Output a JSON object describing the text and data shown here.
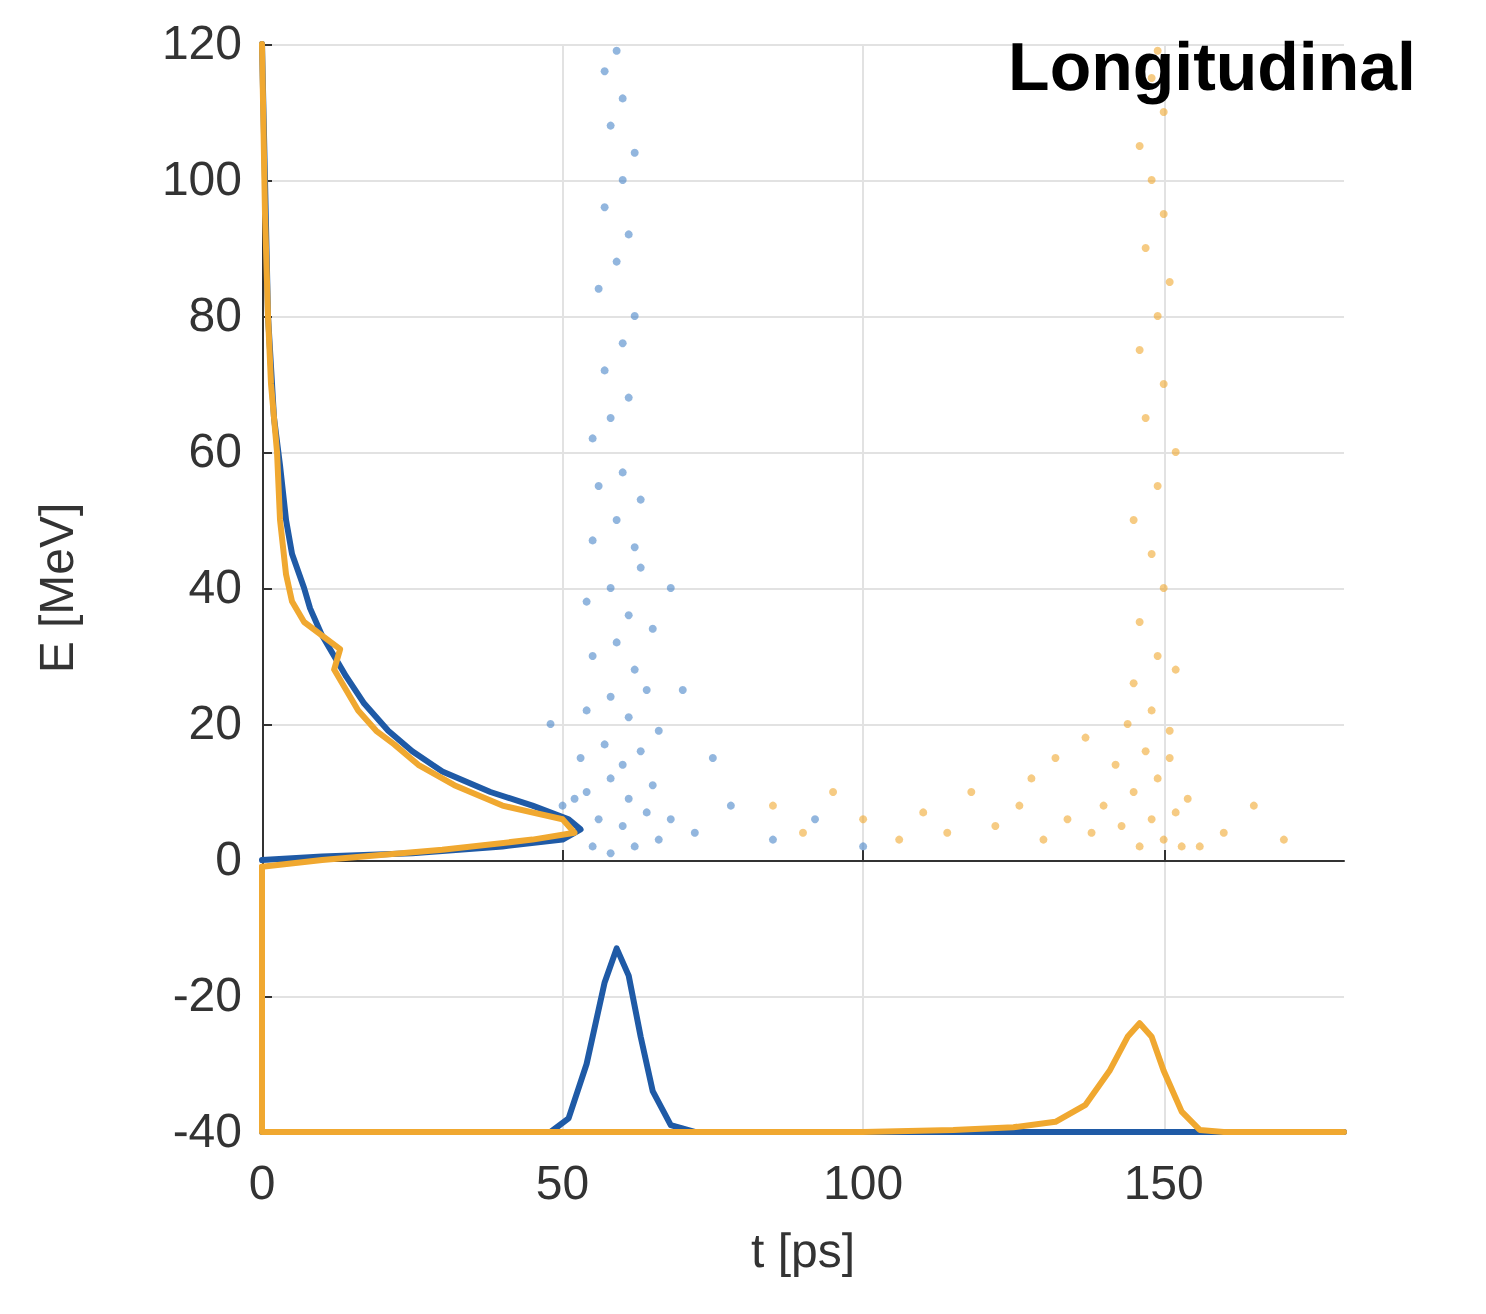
{
  "chart_data": {
    "type": "scatter",
    "title": "Longitudinal",
    "xlabel": "t [ps]",
    "ylabel": "E [MeV]",
    "xlim": [
      0,
      180
    ],
    "ylim": [
      -40,
      120
    ],
    "xticks": [
      0,
      50,
      100,
      150
    ],
    "yticks": [
      -40,
      -20,
      0,
      20,
      40,
      60,
      80,
      100,
      120
    ],
    "grid": true,
    "series": [
      {
        "marker": "circle",
        "color": "#4a86c8",
        "x": [
          55,
          58,
          62,
          66,
          52,
          56,
          60,
          64,
          68,
          54,
          58,
          61,
          65,
          53,
          57,
          60,
          63,
          66,
          54,
          58,
          61,
          64,
          55,
          59,
          62,
          65,
          54,
          58,
          61,
          63,
          55,
          59,
          62,
          56,
          60,
          63,
          55,
          58,
          61,
          57,
          60,
          62,
          56,
          59,
          61,
          57,
          60,
          62,
          58,
          60,
          57,
          59,
          72,
          78,
          85,
          92,
          100,
          75,
          70,
          48,
          50,
          68
        ],
        "values": [
          2,
          1,
          2,
          3,
          9,
          6,
          5,
          7,
          6,
          10,
          12,
          9,
          11,
          15,
          17,
          14,
          16,
          19,
          22,
          24,
          21,
          25,
          30,
          32,
          28,
          34,
          38,
          40,
          36,
          43,
          47,
          50,
          46,
          55,
          57,
          53,
          62,
          65,
          68,
          72,
          76,
          80,
          84,
          88,
          92,
          96,
          100,
          104,
          108,
          112,
          116,
          119,
          4,
          8,
          3,
          6,
          2,
          15,
          25,
          20,
          8,
          40
        ]
      },
      {
        "marker": "circle",
        "color": "#f0a830",
        "x": [
          146,
          150,
          153,
          143,
          148,
          152,
          140,
          145,
          149,
          154,
          142,
          147,
          151,
          138,
          134,
          130,
          126,
          122,
          118,
          114,
          110,
          106,
          100,
          95,
          90,
          85,
          128,
          132,
          144,
          148,
          151,
          145,
          149,
          152,
          146,
          150,
          148,
          145,
          149,
          152,
          147,
          150,
          146,
          149,
          151,
          147,
          150,
          148,
          146,
          150,
          148,
          149,
          160,
          165,
          170,
          156,
          137
        ],
        "values": [
          2,
          3,
          2,
          5,
          6,
          7,
          8,
          10,
          12,
          9,
          14,
          16,
          15,
          4,
          6,
          3,
          8,
          5,
          10,
          4,
          7,
          3,
          6,
          10,
          4,
          8,
          12,
          15,
          20,
          22,
          19,
          26,
          30,
          28,
          35,
          40,
          45,
          50,
          55,
          60,
          65,
          70,
          75,
          80,
          85,
          90,
          95,
          100,
          105,
          110,
          115,
          119,
          4,
          8,
          3,
          2,
          18
        ]
      },
      {
        "type": "line",
        "marker": "none",
        "line_style": "solid",
        "color": "#1f5aa6",
        "x": [
          0,
          10,
          25,
          40,
          50,
          53,
          51,
          45,
          38,
          30,
          25,
          21,
          17,
          14,
          12,
          10,
          8,
          7,
          5,
          4,
          3,
          2,
          1,
          0.5,
          0
        ],
        "values": [
          0,
          0.5,
          1,
          2,
          3,
          4.5,
          6,
          8,
          10,
          13,
          16,
          19,
          23,
          27,
          30,
          33,
          37,
          40,
          45,
          50,
          58,
          65,
          80,
          100,
          120
        ]
      },
      {
        "type": "line",
        "marker": "none",
        "line_style": "solid",
        "color": "#1f5aa6",
        "x": [
          0,
          48,
          51,
          54,
          57,
          59,
          61,
          63,
          65,
          68,
          72,
          180
        ],
        "values": [
          -40,
          -40,
          -38,
          -30,
          -18,
          -13,
          -17,
          -26,
          -34,
          -39,
          -40,
          -40
        ]
      },
      {
        "type": "line",
        "marker": "none",
        "line_style": "solid",
        "color": "#f0a830",
        "x": [
          0,
          10,
          30,
          45,
          52,
          50,
          40,
          32,
          26,
          22,
          19,
          16,
          14,
          12,
          13,
          10,
          7,
          5,
          4,
          3,
          2.5,
          1.5,
          1,
          0.5,
          0
        ],
        "values": [
          -1,
          0,
          1.5,
          3,
          4,
          6,
          8,
          11,
          14,
          17,
          19,
          22,
          25,
          28,
          31,
          33,
          35,
          38,
          42,
          50,
          60,
          70,
          80,
          95,
          120
        ]
      },
      {
        "type": "line",
        "marker": "none",
        "line_style": "solid",
        "color": "#f0a830",
        "x": [
          0,
          0,
          50,
          100,
          115,
          125,
          132,
          137,
          141,
          144,
          146,
          148,
          150,
          153,
          156,
          160,
          180
        ],
        "values": [
          -1,
          -40,
          -40,
          -40,
          -39.7,
          -39.3,
          -38.5,
          -36,
          -31,
          -26,
          -24,
          -26,
          -31,
          -37,
          -39.7,
          -40,
          -40
        ]
      }
    ]
  }
}
